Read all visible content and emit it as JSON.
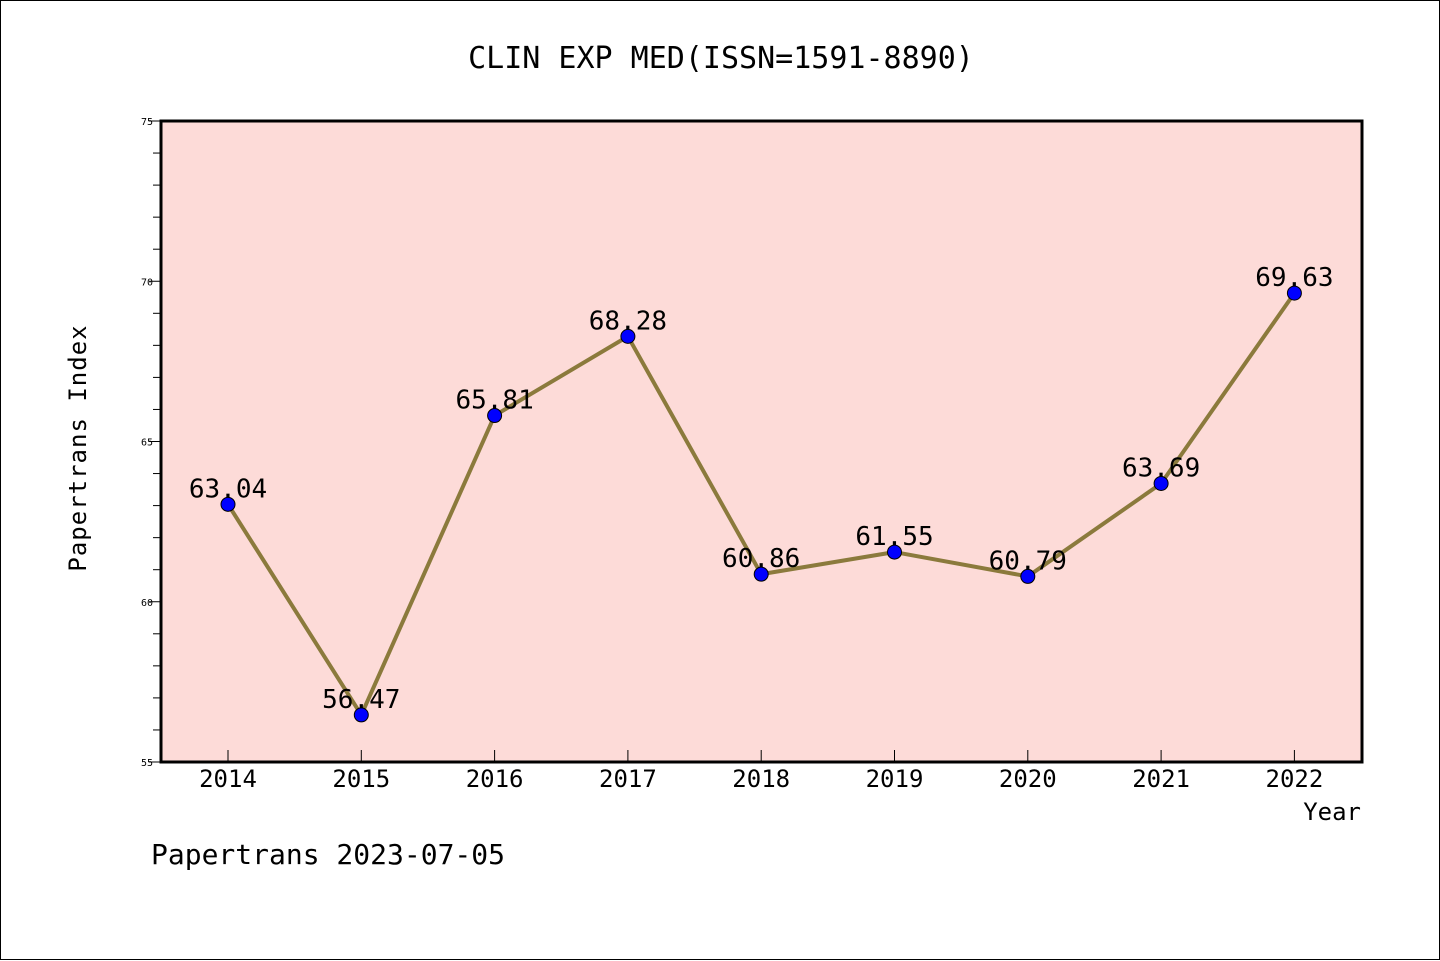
{
  "chart_data": {
    "type": "line",
    "title": "CLIN EXP MED(ISSN=1591-8890)",
    "xlabel": "Year",
    "ylabel": "Papertrans Index",
    "categories": [
      "2014",
      "2015",
      "2016",
      "2017",
      "2018",
      "2019",
      "2020",
      "2021",
      "2022"
    ],
    "series": [
      {
        "values": [
          63.04,
          56.47,
          65.81,
          68.28,
          60.86,
          61.55,
          60.79,
          63.69,
          69.63
        ],
        "labels": [
          "63.04",
          "56.47",
          "65.81",
          "68.28",
          "60.86",
          "61.55",
          "60.79",
          "63.69",
          "69.63"
        ]
      }
    ],
    "ylim": [
      55,
      75
    ],
    "yticks": [
      "55",
      "60",
      "65",
      "70",
      "75"
    ],
    "grid": false,
    "background_color": "#fddbd8",
    "line_color": "#8b7a3c",
    "marker_color": "#0000ff"
  },
  "footer": "Papertrans 2023-07-05"
}
